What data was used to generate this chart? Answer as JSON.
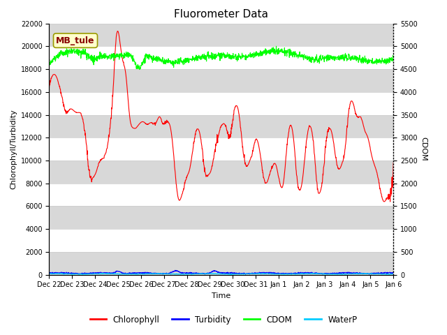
{
  "title": "Fluorometer Data",
  "xlabel": "Time",
  "ylabel_left": "Chlorophyll/Turbidity",
  "ylabel_right": "CDOM",
  "annotation_text": "MB_tule",
  "annotation_bg": "#ffffcc",
  "annotation_border": "#999900",
  "annotation_text_color": "#880000",
  "xlim_start": 0,
  "xlim_end": 15,
  "ylim_left": [
    0,
    22000
  ],
  "ylim_right": [
    0,
    5500
  ],
  "xtick_labels": [
    "Dec 22",
    "Dec 23",
    "Dec 24",
    "Dec 25",
    "Dec 26",
    "Dec 27",
    "Dec 28",
    "Dec 29",
    "Dec 30",
    "Dec 31",
    "Jan 1",
    "Jan 2",
    "Jan 3",
    "Jan 4",
    "Jan 5",
    "Jan 6"
  ],
  "bg_band_color": "#d8d8d8",
  "chlorophyll_color": "#ff0000",
  "turbidity_color": "#0000ff",
  "cdom_color": "#00ff00",
  "waterp_color": "#00ccff",
  "line_width": 0.8,
  "title_fontsize": 11,
  "tick_fontsize": 7,
  "label_fontsize": 8
}
